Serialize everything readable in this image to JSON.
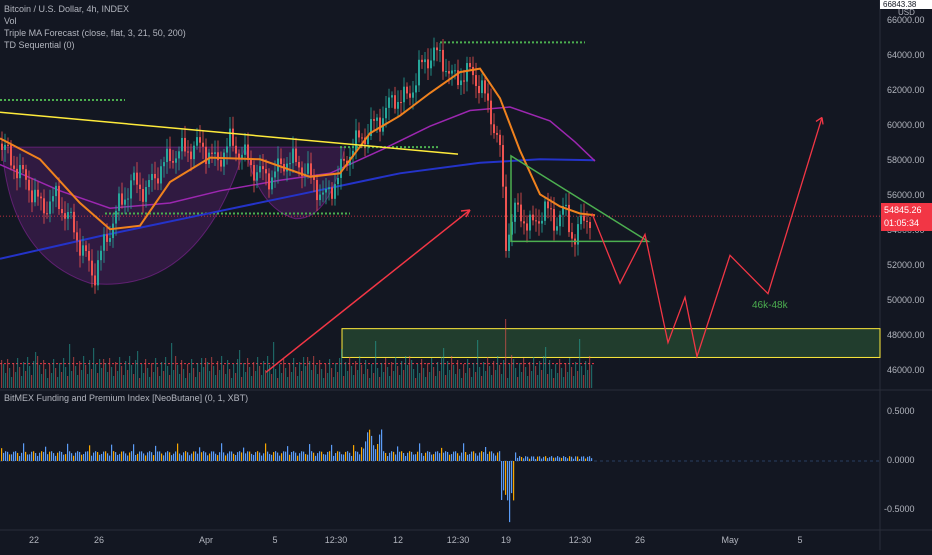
{
  "legend": {
    "main": "Bitcoin / U.S. Dollar, 4h, INDEX",
    "vol": "Vol",
    "ma": "Triple MA Forecast (close, flat, 3, 21, 50, 200)",
    "td": "TD Sequential (0)",
    "oscillator": "BitMEX Funding and Premium Index [NeoButane] (0, 1, XBT)"
  },
  "price_axis": {
    "currency": "USD",
    "top_value": "66843.38",
    "ticks": [
      "66000.00",
      "64000.00",
      "62000.00",
      "60000.00",
      "58000.00",
      "56000.00",
      "54000.00",
      "52000.00",
      "50000.00",
      "48000.00",
      "46000.00"
    ],
    "current_price": "54845.26",
    "countdown": "01:05:34"
  },
  "osc_axis": {
    "ticks": [
      "0.5000",
      "0.0000",
      "-0.5000"
    ]
  },
  "time_axis": {
    "ticks": [
      "22",
      "26",
      "Apr",
      "5",
      "12:30",
      "12",
      "12:30",
      "19",
      "12:30",
      "26",
      "May",
      "5"
    ]
  },
  "annotations": {
    "zone_label": "46k-48k"
  },
  "colors": {
    "background": "#131722",
    "up": "#26a69a",
    "down": "#ef5350",
    "ma_fast": "#f0821e",
    "ma_mid": "#9c27b0",
    "ma_slow": "#2433c9",
    "trendline": "#ffeb3b",
    "forecast": "#f23645",
    "support_dots": "#4caf50",
    "zone_fill": "#4caf50",
    "zone_border": "#ffeb3b",
    "osc_up": "#5b9cf6",
    "osc_down": "#f7a600"
  },
  "chart_data": {
    "type": "candlestick",
    "title": "Bitcoin / U.S. Dollar, 4h, INDEX",
    "ylim": [
      45000,
      67000
    ],
    "x_ticks": [
      "22",
      "26",
      "Apr",
      "5",
      "12:30",
      "12",
      "12:30",
      "19",
      "12:30",
      "26",
      "May",
      "5"
    ],
    "y_ticks": [
      66000,
      64000,
      62000,
      60000,
      58000,
      56000,
      54000,
      52000,
      50000,
      48000,
      46000
    ],
    "close_path": [
      [
        0,
        59000
      ],
      [
        14,
        57800
      ],
      [
        28,
        56700
      ],
      [
        42,
        55300
      ],
      [
        56,
        55900
      ],
      [
        70,
        54600
      ],
      [
        84,
        52700
      ],
      [
        94,
        51400
      ],
      [
        104,
        53200
      ],
      [
        118,
        55300
      ],
      [
        132,
        56800
      ],
      [
        146,
        56300
      ],
      [
        160,
        57600
      ],
      [
        174,
        58400
      ],
      [
        188,
        58700
      ],
      [
        202,
        58900
      ],
      [
        216,
        57900
      ],
      [
        230,
        59100
      ],
      [
        244,
        58300
      ],
      [
        258,
        57300
      ],
      [
        272,
        57100
      ],
      [
        286,
        58100
      ],
      [
        300,
        57800
      ],
      [
        314,
        56800
      ],
      [
        324,
        55800
      ],
      [
        338,
        57100
      ],
      [
        352,
        58800
      ],
      [
        366,
        59600
      ],
      [
        380,
        60400
      ],
      [
        394,
        61600
      ],
      [
        408,
        61600
      ],
      [
        420,
        63300
      ],
      [
        432,
        64200
      ],
      [
        442,
        63900
      ],
      [
        452,
        62700
      ],
      [
        462,
        62900
      ],
      [
        472,
        63100
      ],
      [
        482,
        62100
      ],
      [
        492,
        60500
      ],
      [
        500,
        58600
      ],
      [
        506,
        53400
      ],
      [
        514,
        55200
      ],
      [
        524,
        54700
      ],
      [
        534,
        54200
      ],
      [
        544,
        55400
      ],
      [
        554,
        54500
      ],
      [
        564,
        55200
      ],
      [
        574,
        53500
      ],
      [
        584,
        54700
      ],
      [
        592,
        54845
      ]
    ],
    "ma_fast": [
      [
        0,
        59300
      ],
      [
        40,
        58100
      ],
      [
        80,
        55600
      ],
      [
        110,
        54100
      ],
      [
        140,
        54300
      ],
      [
        170,
        56800
      ],
      [
        210,
        58200
      ],
      [
        260,
        58100
      ],
      [
        310,
        57100
      ],
      [
        340,
        57300
      ],
      [
        370,
        59600
      ],
      [
        400,
        60600
      ],
      [
        430,
        61900
      ],
      [
        460,
        63100
      ],
      [
        480,
        63300
      ],
      [
        500,
        61600
      ],
      [
        520,
        58600
      ],
      [
        540,
        56100
      ],
      [
        560,
        55400
      ],
      [
        580,
        55000
      ],
      [
        595,
        54900
      ]
    ],
    "ma_mid": [
      [
        0,
        57800
      ],
      [
        60,
        56300
      ],
      [
        110,
        55300
      ],
      [
        170,
        55600
      ],
      [
        220,
        56300
      ],
      [
        280,
        56900
      ],
      [
        330,
        57300
      ],
      [
        380,
        58600
      ],
      [
        430,
        60000
      ],
      [
        470,
        60900
      ],
      [
        510,
        61100
      ],
      [
        550,
        60300
      ],
      [
        575,
        59100
      ],
      [
        595,
        58000
      ]
    ],
    "ma_slow": [
      [
        0,
        52400
      ],
      [
        100,
        53700
      ],
      [
        200,
        54900
      ],
      [
        300,
        56100
      ],
      [
        400,
        57300
      ],
      [
        480,
        57900
      ],
      [
        540,
        58100
      ],
      [
        595,
        58050
      ]
    ],
    "trendlines": [
      {
        "name": "upper",
        "from": [
          0,
          60800
        ],
        "to": [
          458,
          58400
        ]
      },
      {
        "name": "arrow",
        "from": [
          266,
          45900
        ],
        "to": [
          470,
          55200
        ]
      }
    ],
    "support_levels": [
      {
        "value": 61500,
        "from": 0,
        "to": 125
      },
      {
        "value": 64800,
        "from": 440,
        "to": 585
      },
      {
        "value": 55000,
        "from": 105,
        "to": 350
      },
      {
        "value": 58800,
        "from": 340,
        "to": 440
      }
    ],
    "triangle": [
      [
        511,
        58300
      ],
      [
        648,
        53400
      ],
      [
        511,
        53400
      ]
    ],
    "forecast_path": [
      [
        592,
        55000
      ],
      [
        620,
        51000
      ],
      [
        645,
        53800
      ],
      [
        668,
        47600
      ],
      [
        685,
        50200
      ],
      [
        697,
        46800
      ],
      [
        730,
        52600
      ],
      [
        768,
        50400
      ],
      [
        822,
        60500
      ]
    ],
    "zone": {
      "from": 342,
      "to": 880,
      "low": 46750,
      "high": 48400
    },
    "dashed_level": 54845,
    "volume_line": 46400,
    "osc_ylim": [
      -0.7,
      0.7
    ]
  }
}
